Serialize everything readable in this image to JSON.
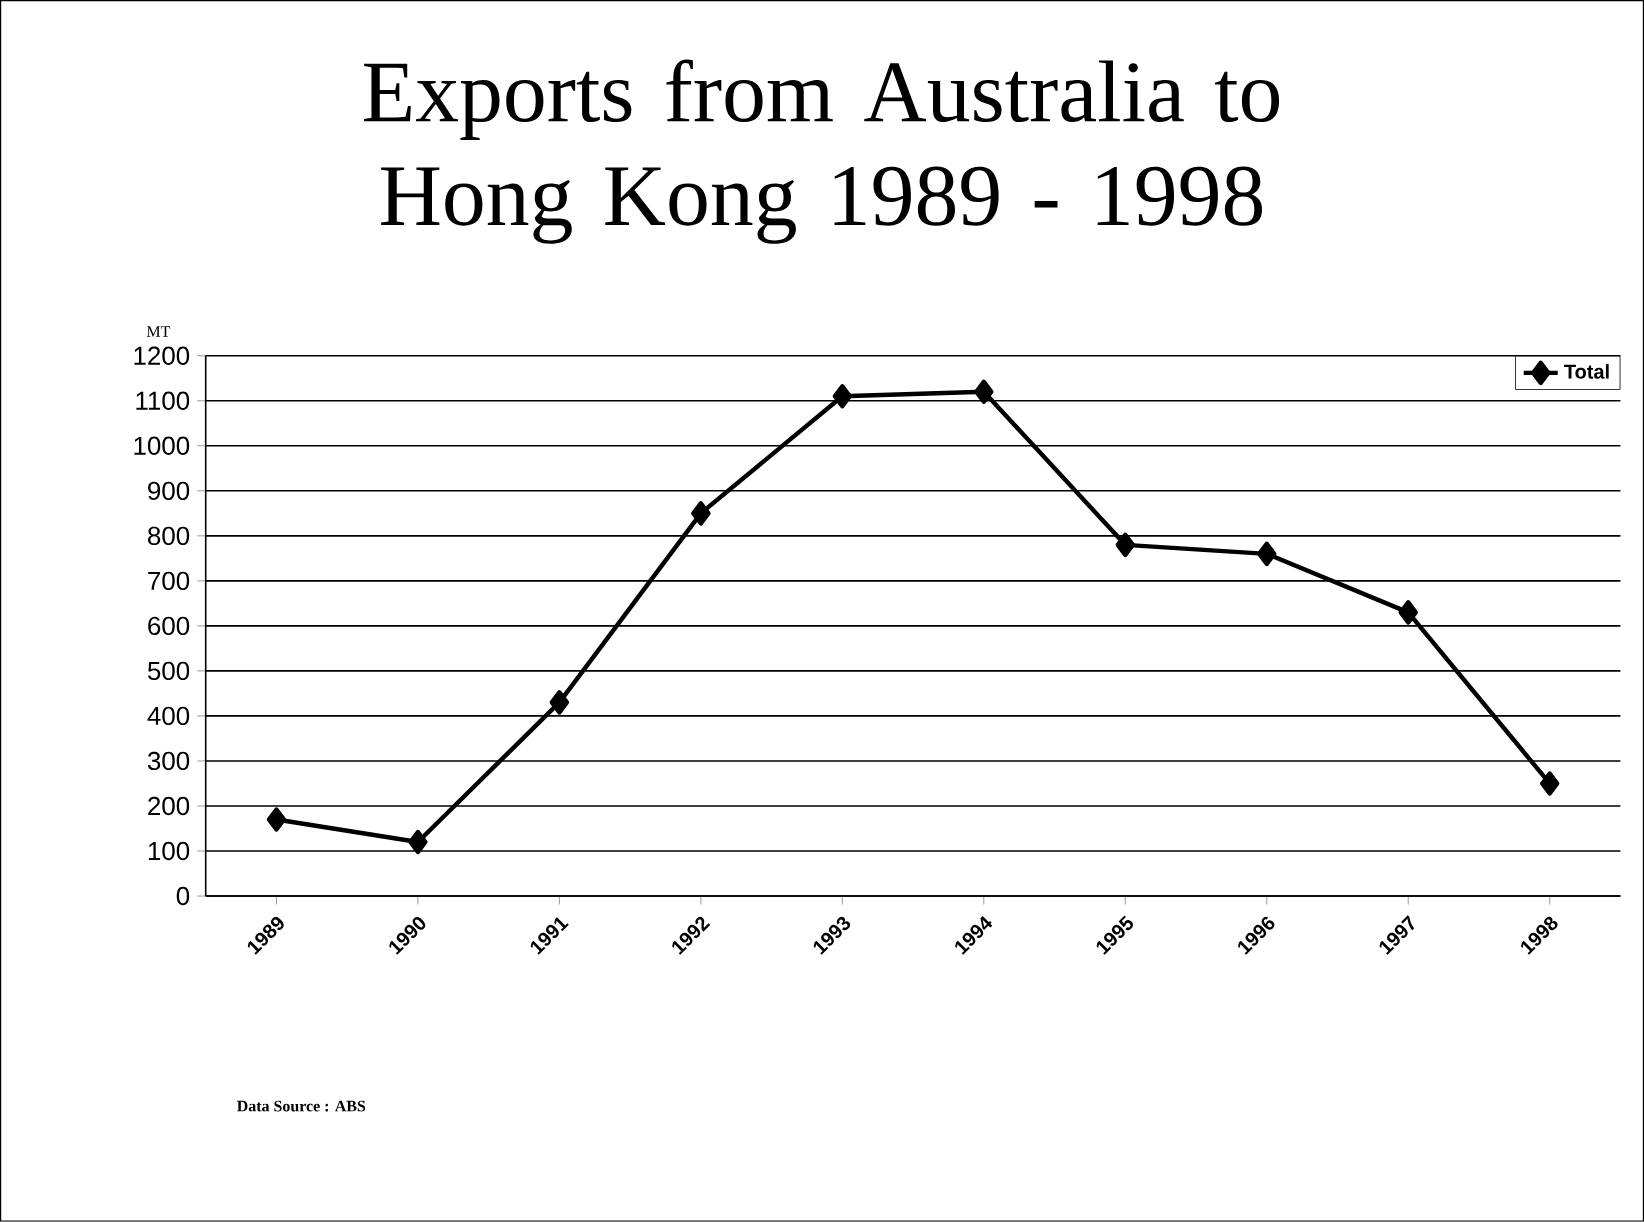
{
  "chart_data": {
    "type": "line",
    "title": "Exports from Australia to Hong Kong 1989 - 1998",
    "ylabel": "MT",
    "categories": [
      "1989",
      "1990",
      "1991",
      "1992",
      "1993",
      "1994",
      "1995",
      "1996",
      "1997",
      "1998"
    ],
    "series": [
      {
        "name": "Total",
        "color": "#000000",
        "values": [
          170,
          120,
          430,
          850,
          1110,
          1120,
          780,
          760,
          630,
          250
        ]
      }
    ],
    "ylim": [
      0,
      1200
    ],
    "yticks": [
      0,
      100,
      200,
      300,
      400,
      500,
      600,
      700,
      800,
      900,
      1000,
      1100,
      1200
    ],
    "grid": "y",
    "legend": "top right",
    "marker": "diamond",
    "line_style": "solid",
    "annotations": [
      "Data Source : ABS"
    ]
  }
}
